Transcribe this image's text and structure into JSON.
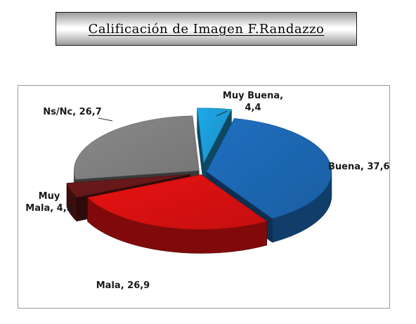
{
  "title": "Calificación de Imagen F.Randazzo",
  "chart_data": {
    "type": "pie",
    "variant": "3d-exploded",
    "slices": [
      {
        "name": "Muy Buena",
        "value": 4.4,
        "label": "Muy Buena,|4,4",
        "color": "#1ea8e8"
      },
      {
        "name": "Buena",
        "value": 37.6,
        "label": "Buena, 37,6",
        "color": "#1f6fc0"
      },
      {
        "name": "Mala",
        "value": 26.9,
        "label": "Mala, 26,9",
        "color": "#e81212"
      },
      {
        "name": "Muy Mala",
        "value": 4.3,
        "label": "Muy|Mala, 4,3",
        "color": "#6e1a1a"
      },
      {
        "name": "Ns/Nc",
        "value": 26.7,
        "label": "Ns/Nc, 26,7",
        "color": "#8a8a8a"
      }
    ],
    "legend": "none",
    "data_labels": "category, value"
  }
}
